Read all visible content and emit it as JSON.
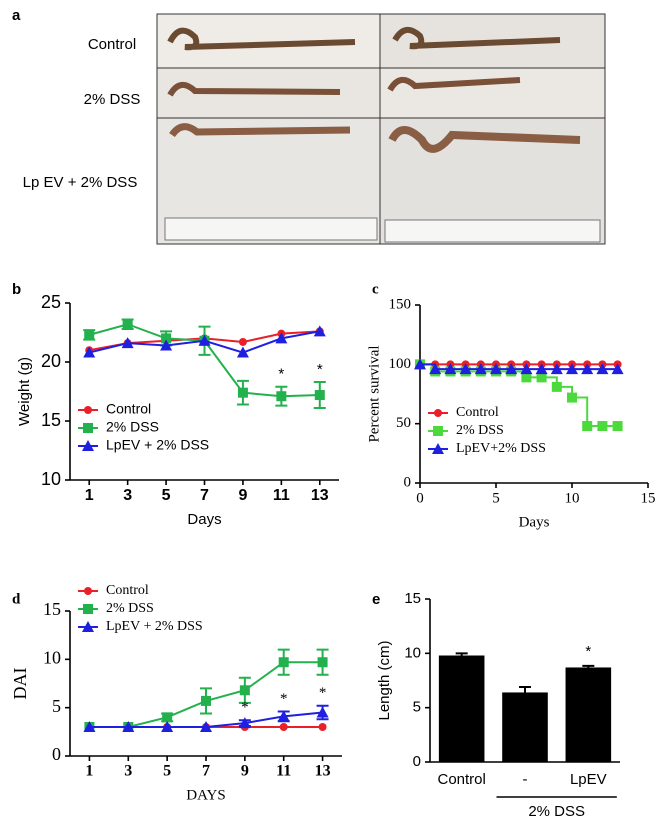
{
  "panel_a": {
    "label": "a",
    "rows": [
      "Control",
      "2% DSS",
      "Lp EV + 2% DSS"
    ]
  },
  "chart_data": [
    {
      "panel": "b",
      "type": "line",
      "x": [
        1,
        3,
        5,
        7,
        9,
        11,
        13
      ],
      "xlim": [
        0,
        14
      ],
      "xticks": [
        1,
        3,
        5,
        7,
        9,
        11,
        13
      ],
      "ylim": [
        10,
        25
      ],
      "yticks": [
        10,
        15,
        20,
        25
      ],
      "y_label": "Weight (g)",
      "x_label": "Days",
      "legend": "lower left",
      "series": [
        {
          "name": "Control",
          "color": "#e8202a",
          "marker": "circle",
          "values": [
            21,
            21.6,
            21.8,
            22,
            21.7,
            22.4,
            22.6
          ]
        },
        {
          "name": "2% DSS",
          "color": "#22b14c",
          "marker": "square",
          "values": [
            22.3,
            23.2,
            22,
            21.8,
            17.4,
            17.1,
            17.2
          ],
          "errors": [
            0.4,
            0.4,
            0.6,
            1.2,
            1,
            0.8,
            1.1
          ]
        },
        {
          "name": "LpEV + 2% DSS",
          "color": "#1f1fe0",
          "marker": "triangle",
          "values": [
            20.8,
            21.6,
            21.4,
            21.8,
            20.8,
            22,
            22.6
          ]
        }
      ],
      "annotations": [
        {
          "text": "*",
          "x": 11,
          "series": "2% DSS"
        },
        {
          "text": "*",
          "x": 13,
          "series": "2% DSS"
        }
      ]
    },
    {
      "panel": "c",
      "type": "line",
      "step": true,
      "x": [
        0,
        1,
        2,
        3,
        4,
        5,
        6,
        7,
        8,
        9,
        10,
        11,
        12,
        13
      ],
      "xlim": [
        0,
        15
      ],
      "xticks": [
        0,
        5,
        10,
        15
      ],
      "ylim": [
        0,
        150
      ],
      "yticks": [
        0,
        50,
        100,
        150
      ],
      "y_label": "Percent survival",
      "x_label": "Days",
      "legend": "lower left",
      "series": [
        {
          "name": "Control",
          "color": "#e8202a",
          "marker": "circle",
          "values": [
            100,
            100,
            100,
            100,
            100,
            100,
            100,
            100,
            100,
            100,
            100,
            100,
            100,
            100
          ]
        },
        {
          "name": "2% DSS",
          "color": "#4cd93c",
          "marker": "square",
          "values": [
            100,
            94,
            94,
            94,
            94,
            94,
            94,
            89,
            89,
            81,
            72,
            48,
            48,
            48
          ]
        },
        {
          "name": "LpEV+2% DSS",
          "color": "#1f1fe0",
          "marker": "triangle",
          "values": [
            100,
            96,
            96,
            96,
            96,
            96,
            96,
            96,
            96,
            96,
            96,
            96,
            96,
            96
          ]
        }
      ]
    },
    {
      "panel": "d",
      "type": "line",
      "x": [
        1,
        3,
        5,
        7,
        9,
        11,
        13
      ],
      "xlim": [
        0,
        14
      ],
      "xticks": [
        1,
        3,
        5,
        7,
        9,
        11,
        13
      ],
      "ylim": [
        0,
        15
      ],
      "yticks": [
        0,
        5,
        10,
        15
      ],
      "y_label": "DAI",
      "x_label": "DAYS",
      "legend": "upper left",
      "series": [
        {
          "name": "Control",
          "color": "#e8202a",
          "marker": "circle",
          "values": [
            3,
            3,
            3,
            3,
            3,
            3,
            3
          ]
        },
        {
          "name": "2% DSS",
          "color": "#22b14c",
          "marker": "square",
          "values": [
            3,
            3,
            4,
            5.7,
            6.8,
            9.7,
            9.7
          ],
          "errors": [
            0,
            0,
            0.4,
            1.3,
            1.3,
            1.3,
            1.3
          ]
        },
        {
          "name": "LpEV + 2% DSS",
          "color": "#1f1fe0",
          "marker": "triangle",
          "values": [
            3,
            3,
            3,
            3,
            3.4,
            4.1,
            4.5
          ],
          "errors": [
            0,
            0,
            0,
            0,
            0.3,
            0.5,
            0.7
          ]
        }
      ],
      "annotations": [
        {
          "text": "*",
          "x": 9,
          "series": "LpEV + 2% DSS"
        },
        {
          "text": "*",
          "x": 11,
          "series": "LpEV + 2% DSS"
        },
        {
          "text": "*",
          "x": 13,
          "series": "LpEV + 2% DSS"
        }
      ]
    },
    {
      "panel": "e",
      "type": "bar",
      "categories": [
        "Control",
        "-",
        "LpEV"
      ],
      "values": [
        9.8,
        6.4,
        8.7
      ],
      "errors": [
        0.2,
        0.5,
        0.15
      ],
      "color": "#000000",
      "ylim": [
        0,
        15
      ],
      "yticks": [
        0,
        5,
        10,
        15
      ],
      "y_label": "Length (cm)",
      "groups": [
        {
          "name": "2% DSS",
          "members": [
            "-",
            "LpEV"
          ]
        }
      ],
      "annotations": [
        {
          "text": "*",
          "category": "LpEV"
        }
      ]
    }
  ]
}
